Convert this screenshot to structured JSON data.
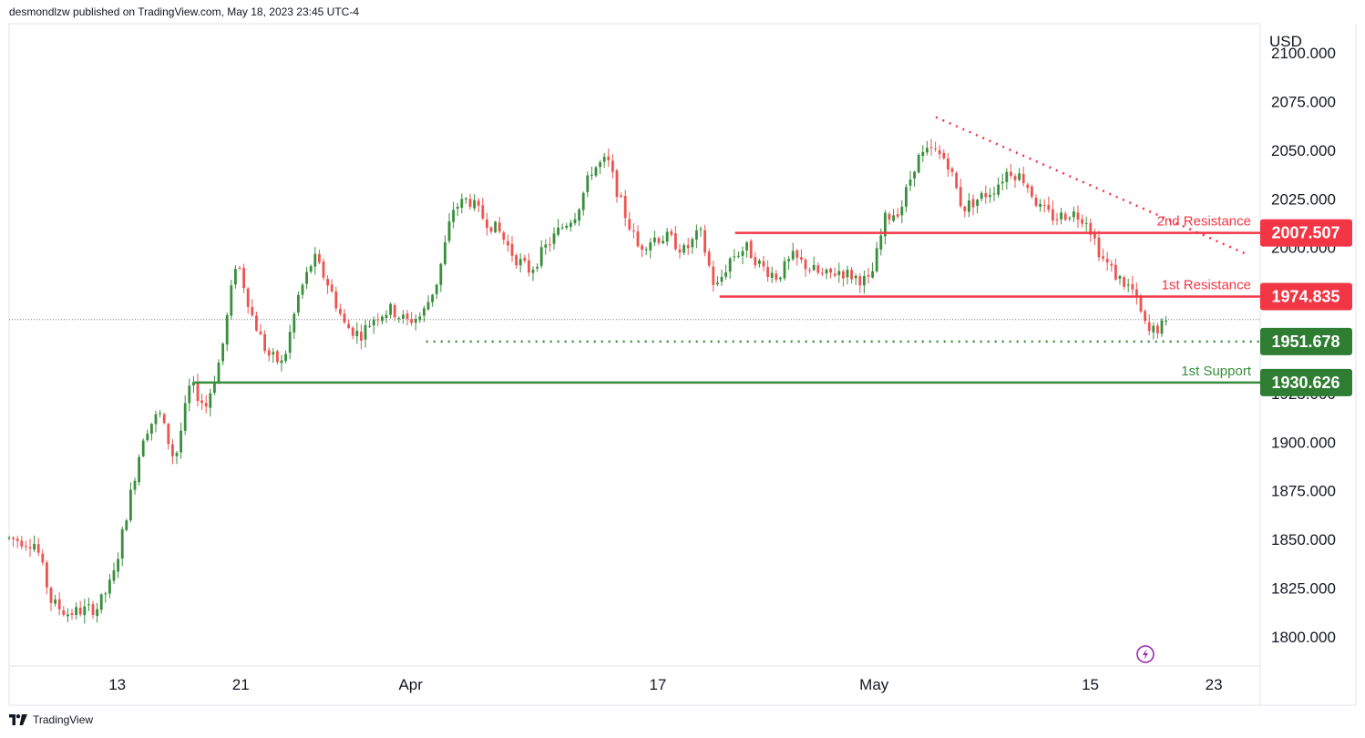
{
  "header": {
    "publisher_line": "desmondlzw published on TradingView.com, May 18, 2023 23:45 UTC-4"
  },
  "footer": {
    "brand": "TradingView",
    "logo_icon": "tradingview-logo-icon"
  },
  "colors": {
    "up": "#388e3c",
    "down": "#ef5350",
    "resistance": "#f23645",
    "support": "#388e3c",
    "support_badge": "#2e7d32",
    "grid_border": "#e0e3eb",
    "flash_icon": "#9c27b0"
  },
  "chart_data": {
    "type": "candlestick",
    "symbol_currency": "USD",
    "y_axis": {
      "unit": "USD",
      "ticks": [
        "2100.000",
        "2075.000",
        "2050.000",
        "2025.000",
        "2000.000",
        "1975.000",
        "1950.000",
        "1925.000",
        "1900.000",
        "1875.000",
        "1850.000",
        "1825.000",
        "1800.000"
      ],
      "range": [
        1785,
        2115
      ]
    },
    "x_axis": {
      "tick_labels": [
        "13",
        "21",
        "Apr",
        "17",
        "May",
        "15",
        "23"
      ],
      "tick_dates": [
        "2023-03-13",
        "2023-03-21",
        "2023-04-01",
        "2023-04-17",
        "2023-05-01",
        "2023-05-15",
        "2023-05-23"
      ],
      "range": [
        "2023-03-06",
        "2023-05-26"
      ]
    },
    "price_path": [
      [
        "2023-03-06",
        1851
      ],
      [
        "2023-03-08",
        1848
      ],
      [
        "2023-03-09",
        1818
      ],
      [
        "2023-03-10",
        1812
      ],
      [
        "2023-03-12",
        1815
      ],
      [
        "2023-03-13",
        1830
      ],
      [
        "2023-03-14",
        1868
      ],
      [
        "2023-03-15",
        1905
      ],
      [
        "2023-03-16",
        1915
      ],
      [
        "2023-03-17",
        1890
      ],
      [
        "2023-03-18",
        1930
      ],
      [
        "2023-03-19",
        1918
      ],
      [
        "2023-03-20",
        1945
      ],
      [
        "2023-03-21",
        1995
      ],
      [
        "2023-03-22",
        1965
      ],
      [
        "2023-03-23",
        1945
      ],
      [
        "2023-03-24",
        1940
      ],
      [
        "2023-03-25",
        1975
      ],
      [
        "2023-03-26",
        1995
      ],
      [
        "2023-03-27",
        1980
      ],
      [
        "2023-03-28",
        1960
      ],
      [
        "2023-03-29",
        1955
      ],
      [
        "2023-03-30",
        1965
      ],
      [
        "2023-03-31",
        1968
      ],
      [
        "2023-04-01",
        1962
      ],
      [
        "2023-04-02",
        1965
      ],
      [
        "2023-04-03",
        1983
      ],
      [
        "2023-04-04",
        2020
      ],
      [
        "2023-04-05",
        2025
      ],
      [
        "2023-04-06",
        2015
      ],
      [
        "2023-04-07",
        2008
      ],
      [
        "2023-04-08",
        1995
      ],
      [
        "2023-04-09",
        1988
      ],
      [
        "2023-04-10",
        2000
      ],
      [
        "2023-04-11",
        2010
      ],
      [
        "2023-04-12",
        2018
      ],
      [
        "2023-04-13",
        2040
      ],
      [
        "2023-04-14",
        2045
      ],
      [
        "2023-04-15",
        2020
      ],
      [
        "2023-04-16",
        2000
      ],
      [
        "2023-04-17",
        2005
      ],
      [
        "2023-04-18",
        2005
      ],
      [
        "2023-04-19",
        1998
      ],
      [
        "2023-04-20",
        2008
      ],
      [
        "2023-04-21",
        1978
      ],
      [
        "2023-04-22",
        1995
      ],
      [
        "2023-04-23",
        2000
      ],
      [
        "2023-04-24",
        1990
      ],
      [
        "2023-04-25",
        1985
      ],
      [
        "2023-04-26",
        1995
      ],
      [
        "2023-04-27",
        1990
      ],
      [
        "2023-04-28",
        1985
      ],
      [
        "2023-04-29",
        1988
      ],
      [
        "2023-04-30",
        1985
      ],
      [
        "2023-05-01",
        1982
      ],
      [
        "2023-05-02",
        2015
      ],
      [
        "2023-05-03",
        2020
      ],
      [
        "2023-05-04",
        2045
      ],
      [
        "2023-05-05",
        2050
      ],
      [
        "2023-05-06",
        2045
      ],
      [
        "2023-05-07",
        2020
      ],
      [
        "2023-05-08",
        2025
      ],
      [
        "2023-05-09",
        2030
      ],
      [
        "2023-05-10",
        2040
      ],
      [
        "2023-05-11",
        2035
      ],
      [
        "2023-05-12",
        2020
      ],
      [
        "2023-05-13",
        2015
      ],
      [
        "2023-05-14",
        2018
      ],
      [
        "2023-05-15",
        2015
      ],
      [
        "2023-05-16",
        1995
      ],
      [
        "2023-05-17",
        1985
      ],
      [
        "2023-05-18",
        1978
      ],
      [
        "2023-05-19",
        1956
      ],
      [
        "2023-05-20",
        1960
      ]
    ],
    "levels": [
      {
        "name": "2nd Resistance",
        "value": "2007.507",
        "start": "2023-04-22",
        "style": "solid",
        "kind": "resistance"
      },
      {
        "name": "1st Resistance",
        "value": "1974.835",
        "start": "2023-04-21",
        "style": "solid",
        "kind": "resistance"
      },
      {
        "name": "",
        "value": "1951.678",
        "start": "2023-04-02",
        "style": "dotted",
        "kind": "support"
      },
      {
        "name": "1st Support",
        "value": "1930.626",
        "start": "2023-03-18",
        "style": "solid",
        "kind": "support"
      }
    ],
    "trendline": {
      "style": "dotted",
      "points": [
        [
          "2023-05-05",
          2067
        ],
        [
          "2023-05-25",
          1997
        ]
      ]
    },
    "last_price_line": 1963
  }
}
